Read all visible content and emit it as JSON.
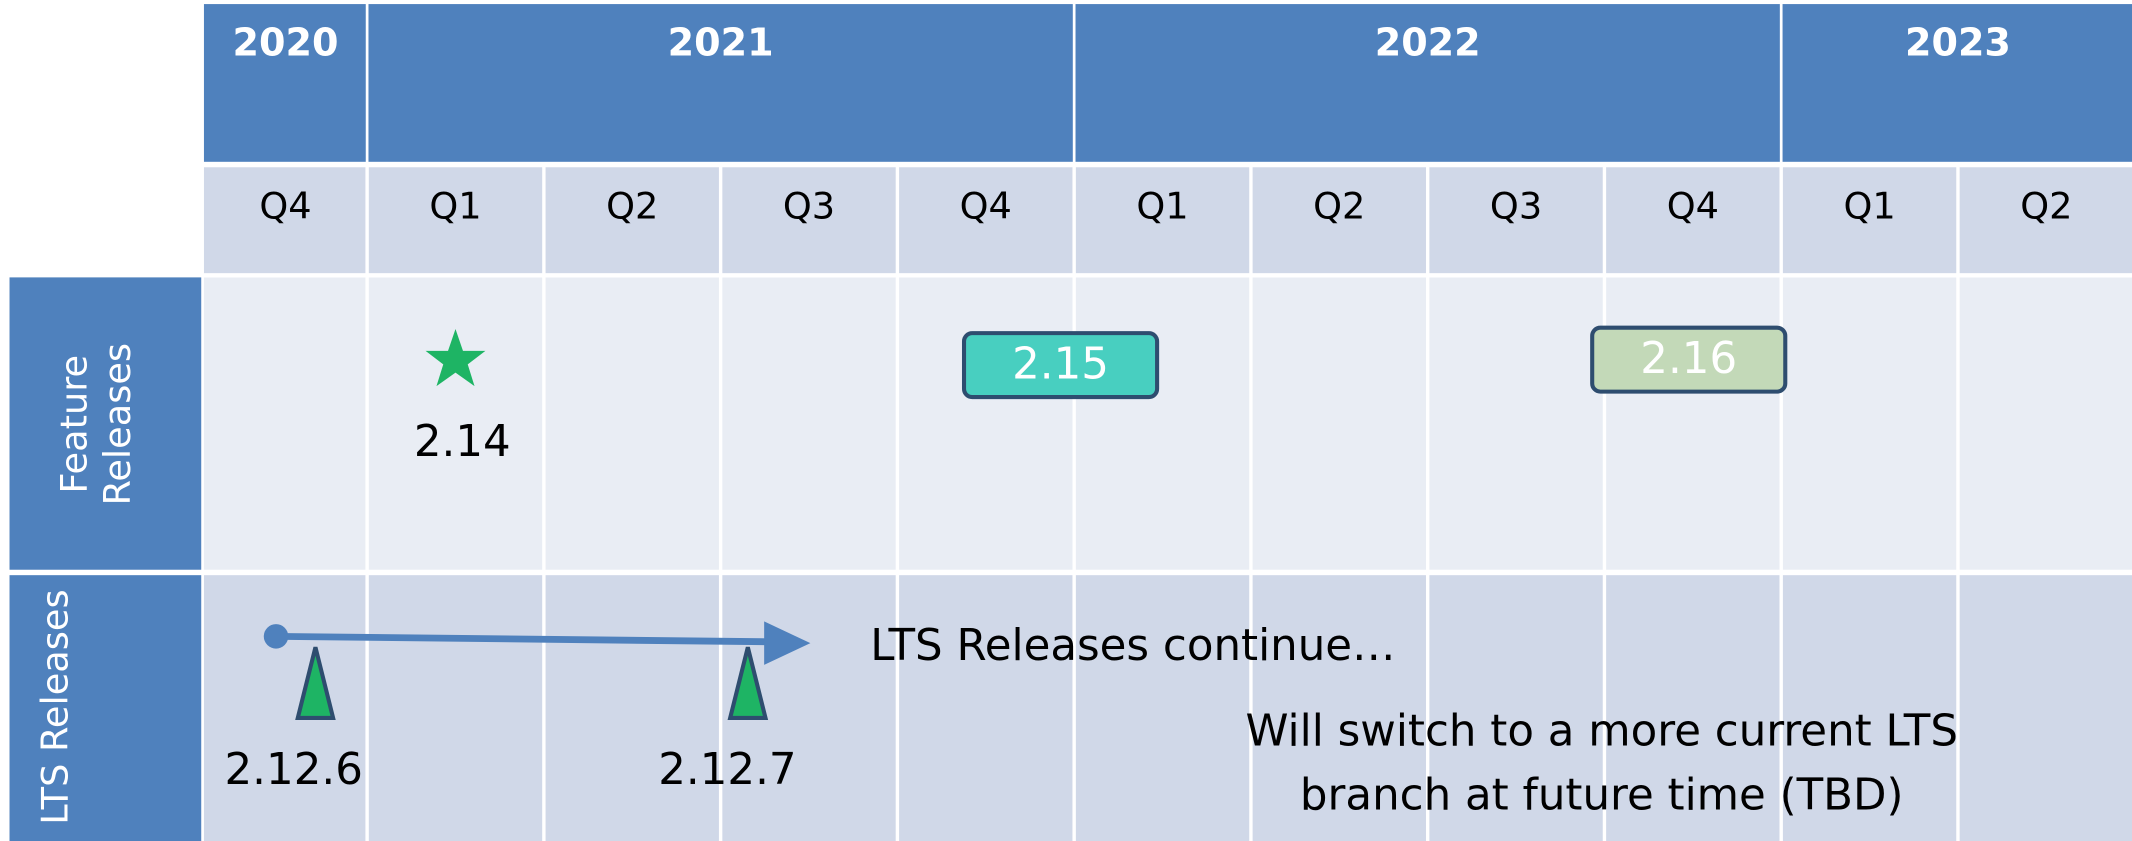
{
  "years": [
    "2020",
    "2021",
    "2022",
    "2023"
  ],
  "quarters": [
    "Q4",
    "Q1",
    "Q2",
    "Q3",
    "Q4",
    "Q1",
    "Q2",
    "Q3",
    "Q4",
    "Q1",
    "Q2"
  ],
  "rows": [
    {
      "label_lines": [
        "Feature",
        "Releases"
      ]
    },
    {
      "label_lines": [
        "LTS Releases"
      ]
    }
  ],
  "feature_releases": [
    "2.14",
    "2.15",
    "2.16"
  ],
  "lts_releases": [
    "2.12.6",
    "2.12.7"
  ],
  "notes": [
    "LTS Releases continue…",
    "Will switch to a more current LTS",
    "branch at future time (TBD)"
  ]
}
